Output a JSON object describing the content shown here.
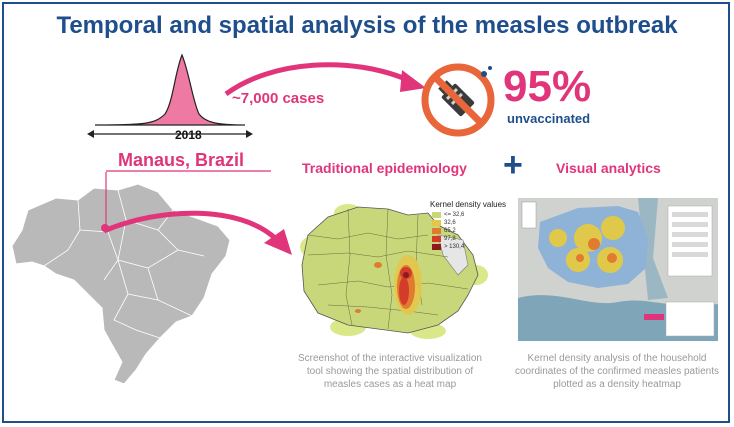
{
  "title": "Temporal and spatial analysis of the measles outbreak",
  "timeline": {
    "cases_label": "~7,000 cases",
    "year": "2018"
  },
  "vaccination": {
    "percent": "95%",
    "label": "unvaccinated",
    "icon": "no-vaccine-icon"
  },
  "location": {
    "city": "Manaus, Brazil"
  },
  "methods": {
    "traditional": "Traditional epidemiology",
    "plus": "+",
    "visual": "Visual analytics"
  },
  "heatmap_left": {
    "legend_title": "Kernel density values",
    "legend": [
      {
        "label": "<= 32,6",
        "color": "#c8d77a"
      },
      {
        "label": "32,6",
        "color": "#e4c64b"
      },
      {
        "label": "65,2",
        "color": "#e07b2f"
      },
      {
        "label": "97,8",
        "color": "#d43c2a"
      },
      {
        "label": "> 130,4",
        "color": "#8e1b1b"
      }
    ],
    "caption": "Screenshot of the interactive visualization tool showing the spatial distribution of measles cases as a heat map"
  },
  "heatmap_right": {
    "caption": "Kernel density analysis of the household coordinates of the confirmed measles patients plotted as a density heatmap"
  },
  "colors": {
    "title_blue": "#1f4e8c",
    "accent_pink": "#e0357a",
    "no_sign_orange": "#e8663a"
  }
}
